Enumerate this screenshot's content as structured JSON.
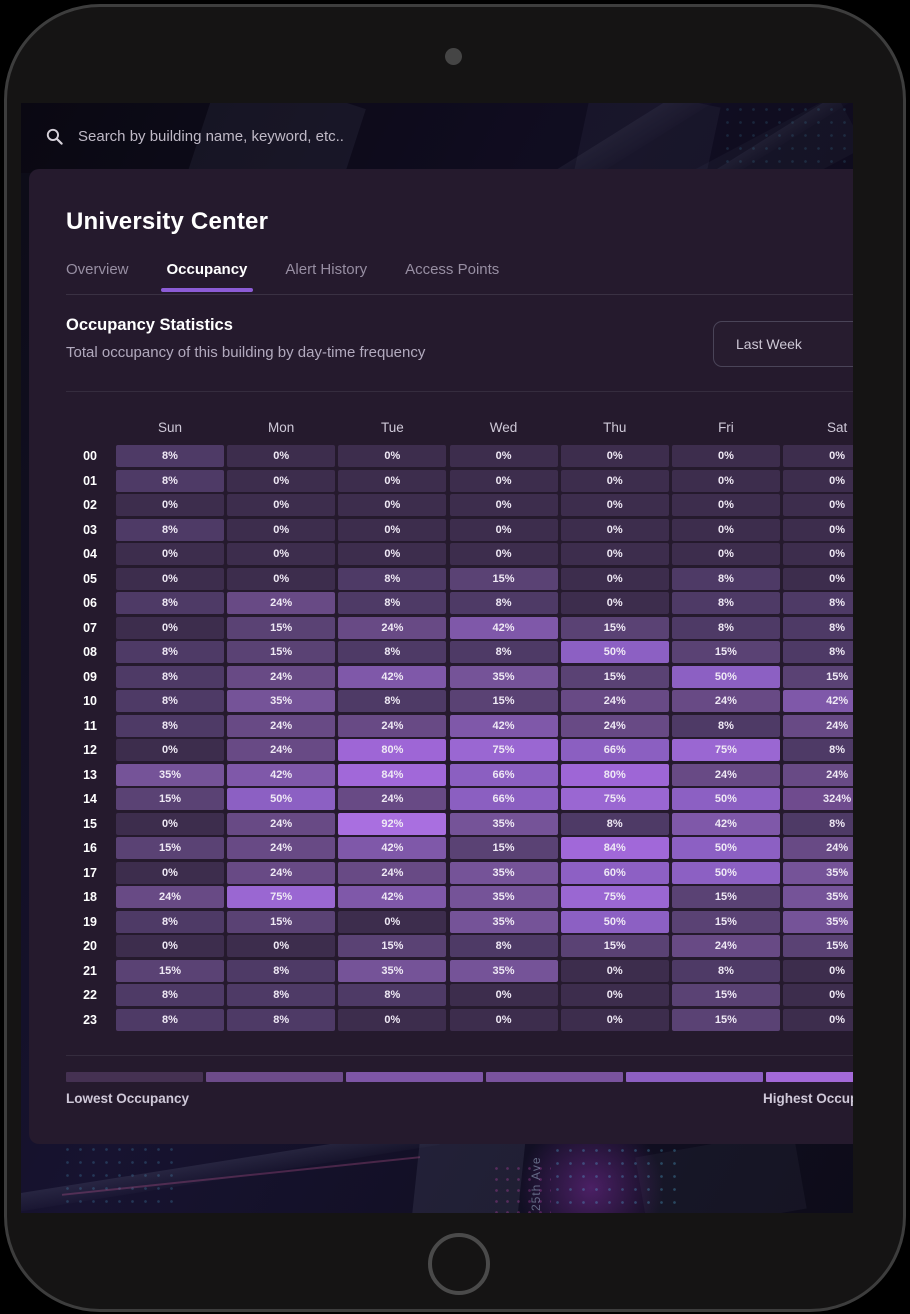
{
  "search": {
    "placeholder": "Search by building name, keyword, etc.."
  },
  "page": {
    "title": "University Center"
  },
  "tabs": [
    {
      "label": "Overview",
      "active": false
    },
    {
      "label": "Occupancy",
      "active": true
    },
    {
      "label": "Alert History",
      "active": false
    },
    {
      "label": "Access Points",
      "active": false
    }
  ],
  "section": {
    "title": "Occupancy Statistics",
    "subtitle": "Total occupancy of this building by day-time frequency",
    "range_selector": "Last Week"
  },
  "background": {
    "street_label": "25th Ave"
  },
  "accent": "#8c5cd6",
  "chart_data": {
    "type": "heatmap",
    "title": "Occupancy Statistics",
    "x_categories": [
      "Sun",
      "Mon",
      "Tue",
      "Wed",
      "Thu",
      "Fri",
      "Sat"
    ],
    "y_categories": [
      "00",
      "01",
      "02",
      "03",
      "04",
      "05",
      "06",
      "07",
      "08",
      "09",
      "10",
      "11",
      "12",
      "13",
      "14",
      "15",
      "16",
      "17",
      "18",
      "19",
      "20",
      "21",
      "22",
      "23"
    ],
    "unit": "%",
    "rows": [
      [
        8,
        0,
        0,
        0,
        0,
        0,
        0
      ],
      [
        8,
        0,
        0,
        0,
        0,
        0,
        0
      ],
      [
        0,
        0,
        0,
        0,
        0,
        0,
        0
      ],
      [
        8,
        0,
        0,
        0,
        0,
        0,
        0
      ],
      [
        0,
        0,
        0,
        0,
        0,
        0,
        0
      ],
      [
        0,
        0,
        8,
        15,
        0,
        8,
        0
      ],
      [
        8,
        24,
        8,
        8,
        0,
        8,
        8
      ],
      [
        0,
        15,
        24,
        42,
        15,
        8,
        8
      ],
      [
        8,
        15,
        8,
        8,
        50,
        15,
        8
      ],
      [
        8,
        24,
        42,
        35,
        15,
        50,
        15
      ],
      [
        8,
        35,
        8,
        15,
        24,
        24,
        42
      ],
      [
        8,
        24,
        24,
        42,
        24,
        8,
        24
      ],
      [
        0,
        24,
        80,
        75,
        66,
        75,
        8
      ],
      [
        35,
        42,
        84,
        66,
        80,
        24,
        24
      ],
      [
        15,
        50,
        24,
        66,
        75,
        50,
        324
      ],
      [
        0,
        24,
        92,
        35,
        8,
        42,
        8
      ],
      [
        15,
        24,
        42,
        15,
        84,
        50,
        24
      ],
      [
        0,
        24,
        24,
        35,
        60,
        50,
        35
      ],
      [
        24,
        75,
        42,
        35,
        75,
        15,
        35
      ],
      [
        8,
        15,
        0,
        35,
        50,
        15,
        35
      ],
      [
        0,
        0,
        15,
        8,
        15,
        24,
        15
      ],
      [
        15,
        8,
        35,
        35,
        0,
        8,
        0
      ],
      [
        8,
        8,
        8,
        0,
        0,
        15,
        0
      ],
      [
        8,
        8,
        0,
        0,
        0,
        15,
        0
      ]
    ],
    "cell_colors": {
      "0": "#3d2d4d",
      "8": "#4e3a66",
      "15": "#5a4274",
      "24": "#684a85",
      "35": "#755398",
      "42": "#7f58a9",
      "50": "#8c60c3",
      "60": "#8d60c4",
      "66": "#8b5fc1",
      "75": "#9a67d2",
      "80": "#9e66d6",
      "84": "#a168d9",
      "92": "#a96fe0",
      "324": "#6f4b8e"
    }
  },
  "legend": {
    "low": "Lowest Occupancy",
    "high": "Highest Occupancy",
    "segments": [
      "#453152",
      "#6d4b8a",
      "#7e56a6",
      "#7a539e",
      "#8d5fc2",
      "#a369d8",
      "#ad73e2",
      "#b57ae8"
    ]
  }
}
